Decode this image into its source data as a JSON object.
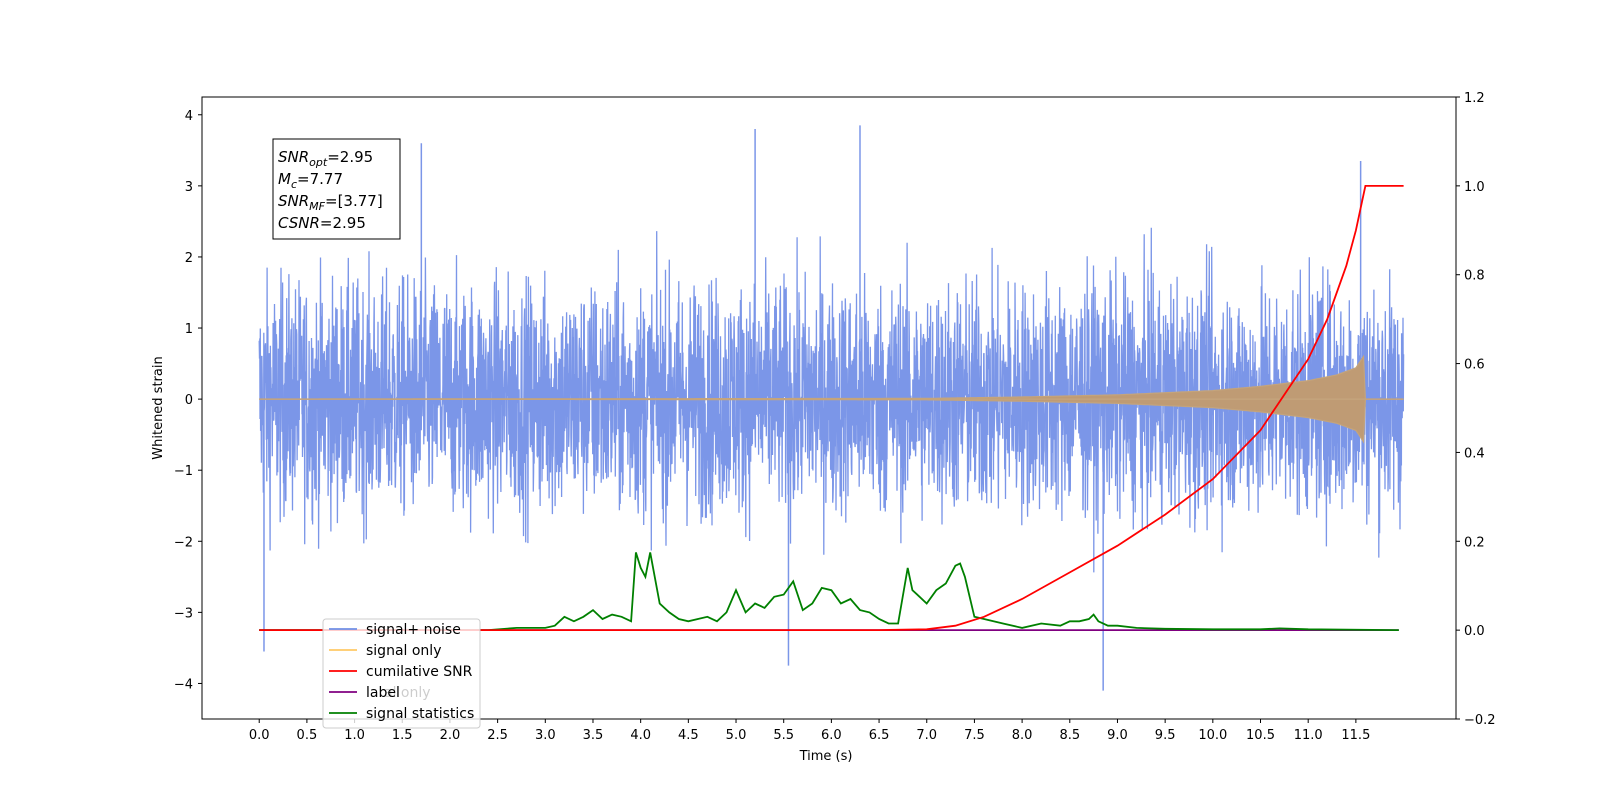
{
  "chart_data": {
    "type": "line",
    "xlabel": "Time (s)",
    "ylabel": "Whitened strain",
    "xlim": [
      -0.6,
      12.55
    ],
    "ylim": [
      -4.5,
      4.25
    ],
    "y2lim": [
      -0.2,
      1.2
    ],
    "x_ticks": [
      0.0,
      0.5,
      1.0,
      1.5,
      2.0,
      2.5,
      3.0,
      3.5,
      4.0,
      4.5,
      5.0,
      5.5,
      6.0,
      6.5,
      7.0,
      7.5,
      8.0,
      8.5,
      9.0,
      9.5,
      10.0,
      10.5,
      11.0,
      11.5
    ],
    "x_tick_labels": [
      "0.0",
      "0.5",
      "1.0",
      "1.5",
      "2.0",
      "2.5",
      "3.0",
      "3.5",
      "4.0",
      "4.5",
      "5.0",
      "5.5",
      "6.0",
      "6.5",
      "7.0",
      "7.5",
      "8.0",
      "8.5",
      "9.0",
      "9.5",
      "10.0",
      "10.5",
      "11.0",
      "11.5"
    ],
    "y_ticks": [
      -4,
      -3,
      -2,
      -1,
      0,
      1,
      2,
      3,
      4
    ],
    "y_tick_labels": [
      "−4",
      "−3",
      "−2",
      "−1",
      "0",
      "1",
      "2",
      "3",
      "4"
    ],
    "y2_ticks": [
      -0.2,
      0.0,
      0.2,
      0.4,
      0.6,
      0.8,
      1.0,
      1.2
    ],
    "y2_tick_labels": [
      "−0.2",
      "0.0",
      "0.2",
      "0.4",
      "0.6",
      "0.8",
      "1.0",
      "1.2"
    ],
    "legend_position": "lower-left",
    "series": [
      {
        "name": "signal+ noise",
        "axis": "left",
        "color": "#7b96e8",
        "x_range": [
          0.0,
          12.0
        ],
        "typical_envelope": [
          -2.2,
          2.3
        ],
        "extremes": [
          {
            "x": 0.05,
            "y": -3.55
          },
          {
            "x": 1.7,
            "y": 3.6
          },
          {
            "x": 5.55,
            "y": -3.75
          },
          {
            "x": 5.2,
            "y": 3.8
          },
          {
            "x": 6.3,
            "y": 3.85
          },
          {
            "x": 8.85,
            "y": -4.1
          },
          {
            "x": 11.55,
            "y": 3.35
          }
        ]
      },
      {
        "name": "signal only",
        "axis": "left",
        "color": "#ffd27f",
        "x_range": [
          0.0,
          12.0
        ],
        "chirp_amplitude": {
          "x": [
            0,
            7.0,
            8.0,
            9.0,
            10.0,
            10.5,
            11.0,
            11.3,
            11.5,
            11.58,
            11.6
          ],
          "amp": [
            0.0,
            0.01,
            0.03,
            0.06,
            0.12,
            0.18,
            0.26,
            0.34,
            0.44,
            0.6,
            0.0
          ]
        }
      },
      {
        "name": "cumilative SNR",
        "axis": "right",
        "color": "#ff0000",
        "x": [
          0.0,
          6.5,
          7.0,
          7.3,
          7.6,
          8.0,
          8.5,
          9.0,
          9.5,
          10.0,
          10.5,
          11.0,
          11.2,
          11.4,
          11.5,
          11.58,
          11.6,
          12.0
        ],
        "y": [
          0.0,
          0.0,
          0.002,
          0.01,
          0.03,
          0.07,
          0.13,
          0.19,
          0.26,
          0.34,
          0.45,
          0.61,
          0.7,
          0.82,
          0.9,
          0.98,
          1.0,
          1.0
        ]
      },
      {
        "name": "label",
        "axis": "right",
        "color": "#800080",
        "x": [
          0.0,
          11.95
        ],
        "y": [
          0.0,
          0.0
        ]
      },
      {
        "name": "signal statistics",
        "axis": "right",
        "color": "#008000",
        "x": [
          0.0,
          2.4,
          2.7,
          3.0,
          3.1,
          3.2,
          3.3,
          3.4,
          3.5,
          3.6,
          3.7,
          3.8,
          3.9,
          3.95,
          4.0,
          4.05,
          4.1,
          4.2,
          4.3,
          4.4,
          4.5,
          4.6,
          4.7,
          4.8,
          4.9,
          5.0,
          5.1,
          5.2,
          5.3,
          5.4,
          5.5,
          5.6,
          5.7,
          5.8,
          5.9,
          6.0,
          6.1,
          6.2,
          6.3,
          6.4,
          6.5,
          6.6,
          6.7,
          6.8,
          6.85,
          6.9,
          7.0,
          7.1,
          7.2,
          7.3,
          7.35,
          7.4,
          7.5,
          7.6,
          7.8,
          8.0,
          8.2,
          8.4,
          8.5,
          8.6,
          8.7,
          8.75,
          8.8,
          8.9,
          9.0,
          9.2,
          9.5,
          10.0,
          10.5,
          10.7,
          11.0,
          11.95
        ],
        "y": [
          0.0,
          0.0,
          0.005,
          0.005,
          0.01,
          0.03,
          0.02,
          0.03,
          0.045,
          0.025,
          0.035,
          0.03,
          0.02,
          0.175,
          0.14,
          0.12,
          0.175,
          0.06,
          0.04,
          0.025,
          0.02,
          0.025,
          0.03,
          0.02,
          0.04,
          0.09,
          0.04,
          0.06,
          0.05,
          0.075,
          0.08,
          0.11,
          0.045,
          0.06,
          0.095,
          0.09,
          0.06,
          0.07,
          0.045,
          0.04,
          0.025,
          0.015,
          0.015,
          0.14,
          0.09,
          0.08,
          0.06,
          0.09,
          0.105,
          0.145,
          0.15,
          0.12,
          0.03,
          0.025,
          0.015,
          0.005,
          0.015,
          0.01,
          0.02,
          0.02,
          0.025,
          0.035,
          0.02,
          0.01,
          0.01,
          0.005,
          0.003,
          0.002,
          0.002,
          0.004,
          0.002,
          0.0
        ]
      }
    ],
    "annotation": [
      {
        "base": "SNR",
        "sub": "opt",
        "value": "=2.95"
      },
      {
        "base": "M",
        "sub": "c",
        "value": "=7.77"
      },
      {
        "base": "SNR",
        "sub": "MF",
        "value": "=[3.77]"
      },
      {
        "base": "CSNR",
        "sub": "",
        "value": "=2.95"
      }
    ],
    "legend_label_overlap": "al only"
  }
}
